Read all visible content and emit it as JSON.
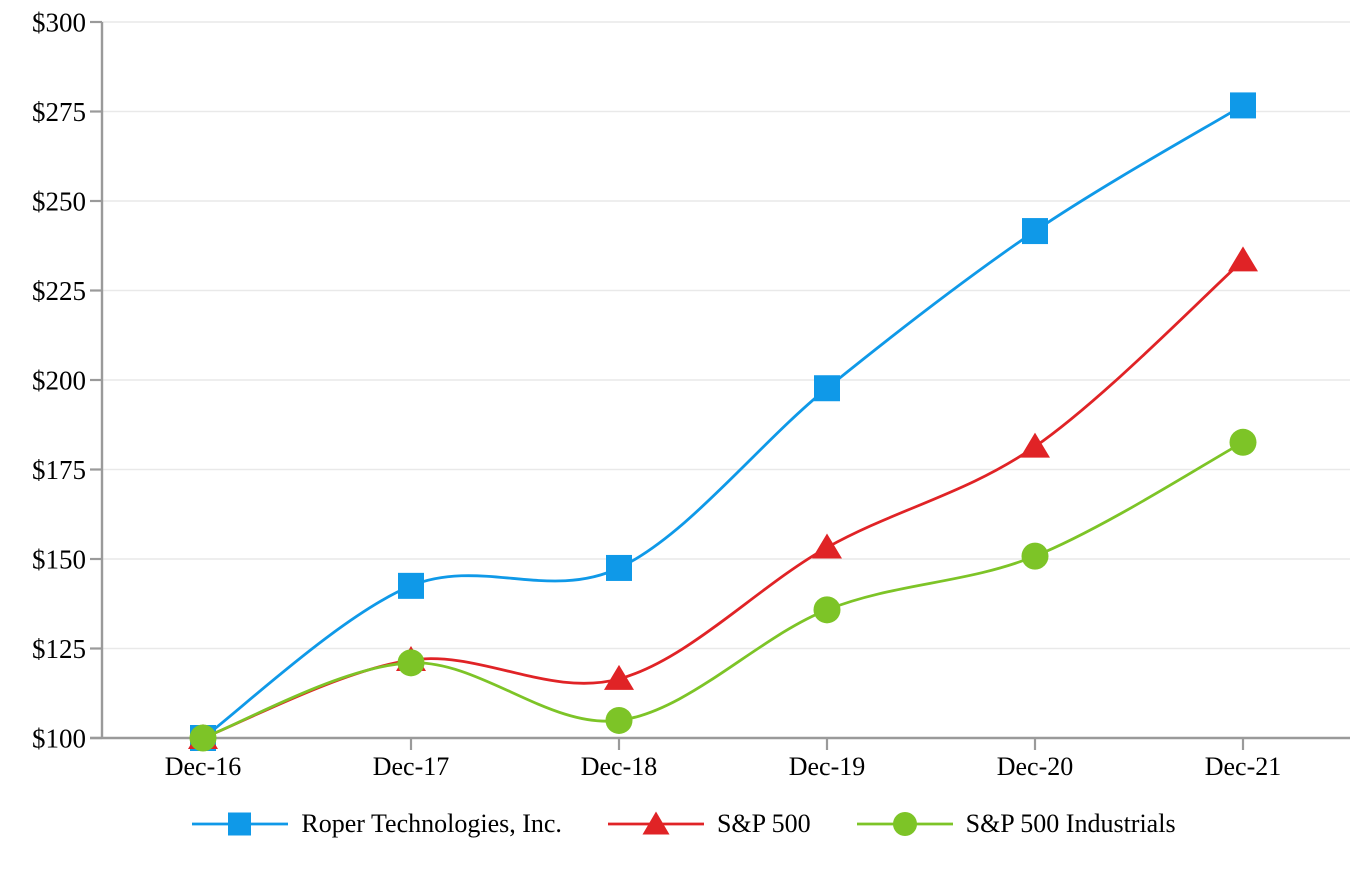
{
  "chart_data": {
    "type": "line",
    "smooth": true,
    "title": "",
    "xlabel": "",
    "ylabel": "",
    "x_categories": [
      "Dec-16",
      "Dec-17",
      "Dec-18",
      "Dec-19",
      "Dec-20",
      "Dec-21"
    ],
    "series": [
      {
        "name": "Roper Technologies, Inc.",
        "marker": "square",
        "color": "#0f99e8",
        "values": [
          100,
          142.5,
          147.5,
          197.7,
          241.6,
          276.7
        ]
      },
      {
        "name": "S&P 500",
        "marker": "triangle",
        "color": "#e02326",
        "values": [
          100,
          121.8,
          116.5,
          153.2,
          181.4,
          233.4
        ]
      },
      {
        "name": "S&P 500 Industrials",
        "marker": "circle",
        "color": "#7dc427",
        "values": [
          100,
          121.0,
          104.9,
          135.8,
          150.8,
          182.6
        ]
      }
    ],
    "y_axis": {
      "min": 100,
      "max": 300,
      "step": 25,
      "prefix": "$",
      "tick_labels": [
        "$300",
        "$275",
        "$250",
        "$225",
        "$200",
        "$175",
        "$150",
        "$125",
        "$100"
      ]
    },
    "ylim": [
      100,
      300
    ],
    "grid": {
      "horizontal": true,
      "color": "#e9e9e9"
    },
    "axis_color": "#9a9a9a",
    "legend_position": "bottom"
  }
}
